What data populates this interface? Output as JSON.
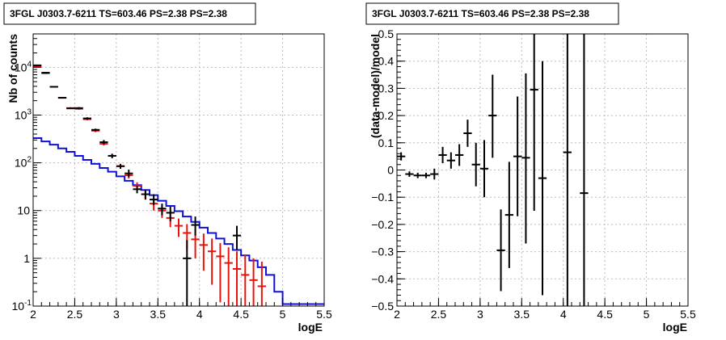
{
  "chart_data": [
    {
      "type": "scatter",
      "title": "3FGL J0303.7-6211 TS=603.46 PS=2.38 PS=2.38",
      "xlabel": "logE",
      "ylabel": "Nb of counts",
      "xlim": [
        2,
        5.5
      ],
      "ylim": [
        0.1,
        50000
      ],
      "yscale": "log",
      "grid": true,
      "xticks": [
        "2",
        "2.5",
        "3",
        "3.5",
        "4",
        "4.5",
        "5",
        "5.5"
      ],
      "yticks": [
        {
          "value": 0.1,
          "label": "10",
          "exp": "-1"
        },
        {
          "value": 1,
          "label": "1",
          "exp": ""
        },
        {
          "value": 10,
          "label": "10",
          "exp": ""
        },
        {
          "value": 100,
          "label": "10",
          "exp": "2"
        },
        {
          "value": 1000,
          "label": "10",
          "exp": "3"
        },
        {
          "value": 10000,
          "label": "10",
          "exp": "4"
        }
      ],
      "colors": {
        "data": "#000000",
        "model": "#e8140c",
        "component": "#1010d8"
      },
      "binwidth": 0.1,
      "data_points": [
        {
          "x": 2.05,
          "y": 11000,
          "lo": 10800,
          "hi": 11200
        },
        {
          "x": 2.15,
          "y": 7700,
          "lo": 7550,
          "hi": 7850
        },
        {
          "x": 2.25,
          "y": 3900,
          "lo": 3800,
          "hi": 4000
        },
        {
          "x": 2.35,
          "y": 2300,
          "lo": 2250,
          "hi": 2350
        },
        {
          "x": 2.45,
          "y": 1380,
          "lo": 1340,
          "hi": 1420
        },
        {
          "x": 2.55,
          "y": 1400,
          "lo": 1330,
          "hi": 1470
        },
        {
          "x": 2.65,
          "y": 850,
          "lo": 800,
          "hi": 900
        },
        {
          "x": 2.75,
          "y": 490,
          "lo": 460,
          "hi": 520
        },
        {
          "x": 2.85,
          "y": 270,
          "lo": 245,
          "hi": 300
        },
        {
          "x": 2.95,
          "y": 140,
          "lo": 125,
          "hi": 155
        },
        {
          "x": 3.05,
          "y": 85,
          "lo": 75,
          "hi": 95
        },
        {
          "x": 3.15,
          "y": 60,
          "lo": 50,
          "hi": 72
        },
        {
          "x": 3.25,
          "y": 28,
          "lo": 23,
          "hi": 33
        },
        {
          "x": 3.35,
          "y": 22,
          "lo": 17,
          "hi": 27
        },
        {
          "x": 3.45,
          "y": 17,
          "lo": 13,
          "hi": 22
        },
        {
          "x": 3.55,
          "y": 11,
          "lo": 8,
          "hi": 14
        },
        {
          "x": 3.65,
          "y": 9,
          "lo": 6,
          "hi": 12
        },
        {
          "x": 3.85,
          "y": 1,
          "lo": 0.1,
          "hi": 2.4
        },
        {
          "x": 3.95,
          "y": 5,
          "lo": 3,
          "hi": 7.5
        },
        {
          "x": 4.45,
          "y": 3,
          "lo": 1.5,
          "hi": 4.8
        }
      ],
      "model_points": [
        {
          "x": 2.05,
          "y": 10500,
          "lo": 10200,
          "hi": 10800
        },
        {
          "x": 2.15,
          "y": 7500,
          "lo": 7300,
          "hi": 7700
        },
        {
          "x": 2.25,
          "y": 3900,
          "lo": 3780,
          "hi": 4020
        },
        {
          "x": 2.35,
          "y": 2300,
          "lo": 2220,
          "hi": 2380
        },
        {
          "x": 2.45,
          "y": 1400,
          "lo": 1340,
          "hi": 1460
        },
        {
          "x": 2.55,
          "y": 1350,
          "lo": 1300,
          "hi": 1400
        },
        {
          "x": 2.65,
          "y": 820,
          "lo": 780,
          "hi": 860
        },
        {
          "x": 2.75,
          "y": 470,
          "lo": 440,
          "hi": 500
        },
        {
          "x": 2.85,
          "y": 250,
          "lo": 230,
          "hi": 272
        },
        {
          "x": 2.95,
          "y": 140,
          "lo": 127,
          "hi": 153
        },
        {
          "x": 3.05,
          "y": 85,
          "lo": 76,
          "hi": 95
        },
        {
          "x": 3.15,
          "y": 55,
          "lo": 47,
          "hi": 63
        },
        {
          "x": 3.25,
          "y": 33,
          "lo": 28,
          "hi": 39
        },
        {
          "x": 3.35,
          "y": 22,
          "lo": 17,
          "hi": 27
        },
        {
          "x": 3.45,
          "y": 14,
          "lo": 10,
          "hi": 18
        },
        {
          "x": 3.55,
          "y": 10,
          "lo": 7,
          "hi": 13
        },
        {
          "x": 3.65,
          "y": 7,
          "lo": 4.5,
          "hi": 9.5
        },
        {
          "x": 3.75,
          "y": 4.8,
          "lo": 2.8,
          "hi": 6.8
        },
        {
          "x": 3.85,
          "y": 3.4,
          "lo": 1.6,
          "hi": 5.2
        },
        {
          "x": 3.95,
          "y": 2.5,
          "lo": 1,
          "hi": 4.1
        },
        {
          "x": 4.05,
          "y": 1.9,
          "lo": 0.55,
          "hi": 3.3
        },
        {
          "x": 4.15,
          "y": 1.4,
          "lo": 0.28,
          "hi": 2.6
        },
        {
          "x": 4.25,
          "y": 1.1,
          "lo": 0.12,
          "hi": 2.1
        },
        {
          "x": 4.35,
          "y": 0.8,
          "lo": 0.1,
          "hi": 1.7
        },
        {
          "x": 4.45,
          "y": 0.6,
          "lo": 0.1,
          "hi": 1.4
        },
        {
          "x": 4.55,
          "y": 0.45,
          "lo": 0.1,
          "hi": 1.2
        },
        {
          "x": 4.65,
          "y": 0.35,
          "lo": 0.1,
          "hi": 1.0
        },
        {
          "x": 4.75,
          "y": 0.26,
          "lo": 0.1,
          "hi": 0.85
        }
      ],
      "component_histogram": {
        "edges": [
          2.0,
          2.1,
          2.2,
          2.3,
          2.4,
          2.5,
          2.6,
          2.7,
          2.8,
          2.9,
          3.0,
          3.1,
          3.2,
          3.3,
          3.4,
          3.5,
          3.6,
          3.7,
          3.8,
          3.9,
          4.0,
          4.1,
          4.2,
          4.3,
          4.4,
          4.5,
          4.6,
          4.7,
          4.8,
          4.9,
          5.0,
          5.5
        ],
        "values": [
          330,
          280,
          240,
          200,
          170,
          140,
          115,
          95,
          78,
          65,
          52,
          42,
          34,
          27,
          21,
          16,
          12.5,
          9.7,
          7.5,
          5.8,
          4.4,
          3.4,
          2.6,
          2.0,
          1.5,
          1.15,
          0.9,
          0.65,
          0.45,
          0.2,
          0.11
        ]
      }
    },
    {
      "type": "scatter",
      "title": "3FGL J0303.7-6211 TS=603.46 PS=2.38 PS=2.38",
      "xlabel": "logE",
      "ylabel": "(data-model)/model",
      "xlim": [
        2,
        5.5
      ],
      "ylim": [
        -0.5,
        0.5
      ],
      "yscale": "linear",
      "grid": true,
      "xticks": [
        "2",
        "2.5",
        "3",
        "3.5",
        "4",
        "4.5",
        "5",
        "5.5"
      ],
      "yticks": [
        "−0.5",
        "−0.4",
        "−0.3",
        "−0.2",
        "−0.1",
        "0",
        "0.1",
        "0.2",
        "0.3",
        "0.4",
        "0.5"
      ],
      "binwidth": 0.1,
      "points": [
        {
          "x": 2.05,
          "y": 0.05,
          "lo": 0.035,
          "hi": 0.065
        },
        {
          "x": 2.15,
          "y": -0.015,
          "lo": -0.025,
          "hi": -0.005
        },
        {
          "x": 2.25,
          "y": -0.02,
          "lo": -0.03,
          "hi": -0.01
        },
        {
          "x": 2.35,
          "y": -0.02,
          "lo": -0.03,
          "hi": -0.01
        },
        {
          "x": 2.45,
          "y": -0.015,
          "lo": -0.035,
          "hi": 0.005
        },
        {
          "x": 2.55,
          "y": 0.055,
          "lo": 0.025,
          "hi": 0.085
        },
        {
          "x": 2.65,
          "y": 0.035,
          "lo": 0.005,
          "hi": 0.065
        },
        {
          "x": 2.75,
          "y": 0.055,
          "lo": 0.015,
          "hi": 0.095
        },
        {
          "x": 2.85,
          "y": 0.135,
          "lo": 0.085,
          "hi": 0.185
        },
        {
          "x": 2.95,
          "y": 0.02,
          "lo": -0.06,
          "hi": 0.1
        },
        {
          "x": 3.05,
          "y": 0.005,
          "lo": -0.1,
          "hi": 0.11
        },
        {
          "x": 3.15,
          "y": 0.2,
          "lo": 0.045,
          "hi": 0.35
        },
        {
          "x": 3.25,
          "y": -0.295,
          "lo": -0.445,
          "hi": -0.145
        },
        {
          "x": 3.35,
          "y": -0.165,
          "lo": -0.36,
          "hi": 0.03
        },
        {
          "x": 3.45,
          "y": 0.05,
          "lo": -0.17,
          "hi": 0.27
        },
        {
          "x": 3.55,
          "y": 0.045,
          "lo": -0.27,
          "hi": 0.355
        },
        {
          "x": 3.65,
          "y": 0.295,
          "lo": -0.15,
          "hi": 0.5
        },
        {
          "x": 3.75,
          "y": -0.03,
          "lo": -0.46,
          "hi": 0.4
        },
        {
          "x": 4.05,
          "y": 0.065,
          "lo": -0.5,
          "hi": 0.5
        },
        {
          "x": 4.25,
          "y": -0.085,
          "lo": -0.5,
          "hi": 0.5
        }
      ]
    }
  ]
}
